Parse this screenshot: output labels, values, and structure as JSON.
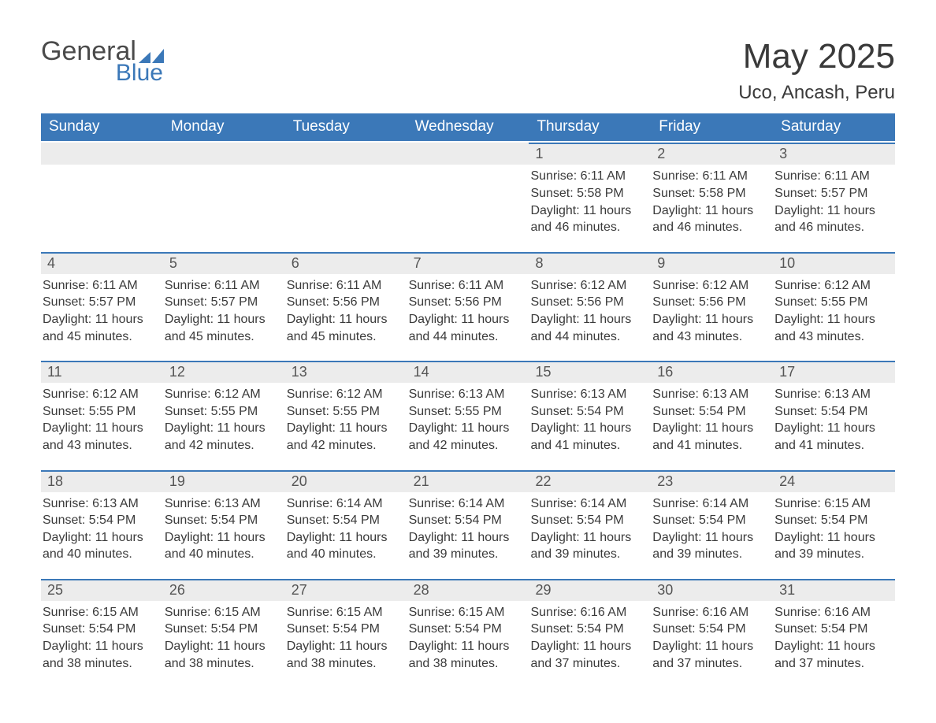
{
  "logo": {
    "word1": "General",
    "word2": "Blue",
    "accent_color": "#3b78b8",
    "text_color": "#4a4a4a"
  },
  "title": "May 2025",
  "subtitle": "Uco, Ancash, Peru",
  "colors": {
    "header_bg": "#3b78b8",
    "header_text": "#ffffff",
    "daynum_bg": "#ececec",
    "daynum_border": "#3b78b8",
    "body_text": "#3a3a3a",
    "daynum_text": "#555555",
    "page_bg": "#ffffff"
  },
  "fonts": {
    "title_size": 44,
    "subtitle_size": 24,
    "header_size": 19,
    "daynum_size": 18,
    "body_size": 16
  },
  "weekdays": [
    "Sunday",
    "Monday",
    "Tuesday",
    "Wednesday",
    "Thursday",
    "Friday",
    "Saturday"
  ],
  "leading_blanks": 4,
  "days": [
    {
      "n": 1,
      "sunrise": "6:11 AM",
      "sunset": "5:58 PM",
      "daylight": "11 hours and 46 minutes."
    },
    {
      "n": 2,
      "sunrise": "6:11 AM",
      "sunset": "5:58 PM",
      "daylight": "11 hours and 46 minutes."
    },
    {
      "n": 3,
      "sunrise": "6:11 AM",
      "sunset": "5:57 PM",
      "daylight": "11 hours and 46 minutes."
    },
    {
      "n": 4,
      "sunrise": "6:11 AM",
      "sunset": "5:57 PM",
      "daylight": "11 hours and 45 minutes."
    },
    {
      "n": 5,
      "sunrise": "6:11 AM",
      "sunset": "5:57 PM",
      "daylight": "11 hours and 45 minutes."
    },
    {
      "n": 6,
      "sunrise": "6:11 AM",
      "sunset": "5:56 PM",
      "daylight": "11 hours and 45 minutes."
    },
    {
      "n": 7,
      "sunrise": "6:11 AM",
      "sunset": "5:56 PM",
      "daylight": "11 hours and 44 minutes."
    },
    {
      "n": 8,
      "sunrise": "6:12 AM",
      "sunset": "5:56 PM",
      "daylight": "11 hours and 44 minutes."
    },
    {
      "n": 9,
      "sunrise": "6:12 AM",
      "sunset": "5:56 PM",
      "daylight": "11 hours and 43 minutes."
    },
    {
      "n": 10,
      "sunrise": "6:12 AM",
      "sunset": "5:55 PM",
      "daylight": "11 hours and 43 minutes."
    },
    {
      "n": 11,
      "sunrise": "6:12 AM",
      "sunset": "5:55 PM",
      "daylight": "11 hours and 43 minutes."
    },
    {
      "n": 12,
      "sunrise": "6:12 AM",
      "sunset": "5:55 PM",
      "daylight": "11 hours and 42 minutes."
    },
    {
      "n": 13,
      "sunrise": "6:12 AM",
      "sunset": "5:55 PM",
      "daylight": "11 hours and 42 minutes."
    },
    {
      "n": 14,
      "sunrise": "6:13 AM",
      "sunset": "5:55 PM",
      "daylight": "11 hours and 42 minutes."
    },
    {
      "n": 15,
      "sunrise": "6:13 AM",
      "sunset": "5:54 PM",
      "daylight": "11 hours and 41 minutes."
    },
    {
      "n": 16,
      "sunrise": "6:13 AM",
      "sunset": "5:54 PM",
      "daylight": "11 hours and 41 minutes."
    },
    {
      "n": 17,
      "sunrise": "6:13 AM",
      "sunset": "5:54 PM",
      "daylight": "11 hours and 41 minutes."
    },
    {
      "n": 18,
      "sunrise": "6:13 AM",
      "sunset": "5:54 PM",
      "daylight": "11 hours and 40 minutes."
    },
    {
      "n": 19,
      "sunrise": "6:13 AM",
      "sunset": "5:54 PM",
      "daylight": "11 hours and 40 minutes."
    },
    {
      "n": 20,
      "sunrise": "6:14 AM",
      "sunset": "5:54 PM",
      "daylight": "11 hours and 40 minutes."
    },
    {
      "n": 21,
      "sunrise": "6:14 AM",
      "sunset": "5:54 PM",
      "daylight": "11 hours and 39 minutes."
    },
    {
      "n": 22,
      "sunrise": "6:14 AM",
      "sunset": "5:54 PM",
      "daylight": "11 hours and 39 minutes."
    },
    {
      "n": 23,
      "sunrise": "6:14 AM",
      "sunset": "5:54 PM",
      "daylight": "11 hours and 39 minutes."
    },
    {
      "n": 24,
      "sunrise": "6:15 AM",
      "sunset": "5:54 PM",
      "daylight": "11 hours and 39 minutes."
    },
    {
      "n": 25,
      "sunrise": "6:15 AM",
      "sunset": "5:54 PM",
      "daylight": "11 hours and 38 minutes."
    },
    {
      "n": 26,
      "sunrise": "6:15 AM",
      "sunset": "5:54 PM",
      "daylight": "11 hours and 38 minutes."
    },
    {
      "n": 27,
      "sunrise": "6:15 AM",
      "sunset": "5:54 PM",
      "daylight": "11 hours and 38 minutes."
    },
    {
      "n": 28,
      "sunrise": "6:15 AM",
      "sunset": "5:54 PM",
      "daylight": "11 hours and 38 minutes."
    },
    {
      "n": 29,
      "sunrise": "6:16 AM",
      "sunset": "5:54 PM",
      "daylight": "11 hours and 37 minutes."
    },
    {
      "n": 30,
      "sunrise": "6:16 AM",
      "sunset": "5:54 PM",
      "daylight": "11 hours and 37 minutes."
    },
    {
      "n": 31,
      "sunrise": "6:16 AM",
      "sunset": "5:54 PM",
      "daylight": "11 hours and 37 minutes."
    }
  ],
  "labels": {
    "sunrise": "Sunrise:",
    "sunset": "Sunset:",
    "daylight": "Daylight:"
  }
}
